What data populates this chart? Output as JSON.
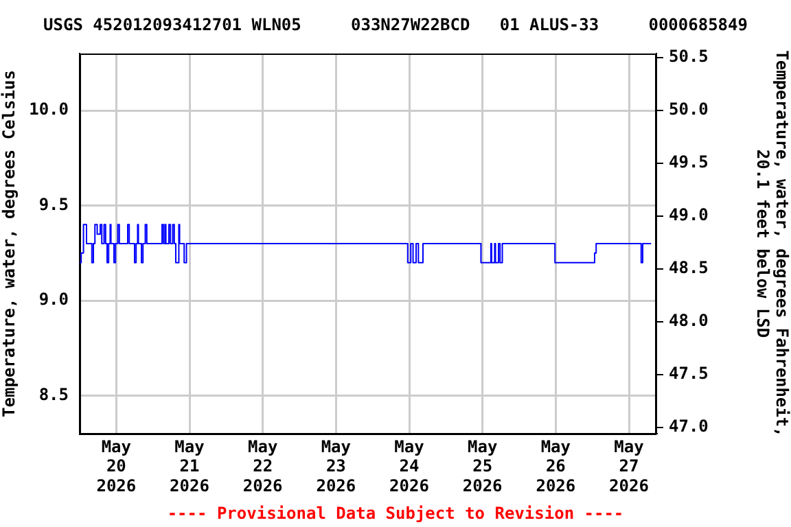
{
  "chart_data": {
    "type": "step",
    "title": "USGS 452012093412701 WLN05     033N27W22BCD   01 ALUS-33     0000685849",
    "ylabel": "Temperature, water, degrees Celsius",
    "y2label": "Temperature, water, degrees Fahrenheit,\n20.1 feet below LSD",
    "annotations": [
      "---- Provisional Data Subject to Revision ----"
    ],
    "x": [
      "2026-05-19T12:00",
      "2026-05-19T12:30",
      "2026-05-19T13:15",
      "2026-05-19T14:15",
      "2026-05-19T15:30",
      "2026-05-19T16:00",
      "2026-05-19T16:30",
      "2026-05-19T17:00",
      "2026-05-19T17:45",
      "2026-05-19T18:45",
      "2026-05-19T19:15",
      "2026-05-19T20:00",
      "2026-05-19T20:30",
      "2026-05-19T21:00",
      "2026-05-19T21:30",
      "2026-05-19T22:00",
      "2026-05-19T22:15",
      "2026-05-19T23:15",
      "2026-05-19T23:45",
      "2026-05-20T00:30",
      "2026-05-20T01:00",
      "2026-05-20T03:45",
      "2026-05-20T04:15",
      "2026-05-20T06:00",
      "2026-05-20T06:30",
      "2026-05-20T07:00",
      "2026-05-20T07:15",
      "2026-05-20T08:15",
      "2026-05-20T08:45",
      "2026-05-20T09:30",
      "2026-05-20T10:00",
      "2026-05-20T15:00",
      "2026-05-20T15:30",
      "2026-05-20T16:00",
      "2026-05-20T16:15",
      "2026-05-20T17:15",
      "2026-05-20T17:45",
      "2026-05-20T18:30",
      "2026-05-20T19:00",
      "2026-05-20T19:30",
      "2026-05-20T20:30",
      "2026-05-20T20:45",
      "2026-05-20T22:15",
      "2026-05-20T23:00",
      "2026-05-23T23:30",
      "2026-05-24T00:30",
      "2026-05-24T01:15",
      "2026-05-24T02:15",
      "2026-05-24T03:00",
      "2026-05-24T04:30",
      "2026-05-24T05:00",
      "2026-05-24T23:30",
      "2026-05-25T02:45",
      "2026-05-25T03:00",
      "2026-05-25T04:00",
      "2026-05-25T04:15",
      "2026-05-25T05:15",
      "2026-05-25T05:45",
      "2026-05-25T06:30",
      "2026-05-25T23:45",
      "2026-05-26T12:45",
      "2026-05-26T13:15",
      "2026-05-27T04:00",
      "2026-05-27T04:30",
      "2026-05-27T07:15"
    ],
    "series": [
      {
        "color": "#0000ff",
        "values": [
          9.2,
          9.25,
          9.4,
          9.3,
          9.3,
          9.2,
          9.3,
          9.4,
          9.35,
          9.4,
          9.3,
          9.4,
          9.3,
          9.2,
          9.3,
          9.4,
          9.3,
          9.2,
          9.3,
          9.4,
          9.3,
          9.4,
          9.3,
          9.2,
          9.3,
          9.4,
          9.3,
          9.2,
          9.3,
          9.4,
          9.3,
          9.4,
          9.3,
          9.4,
          9.3,
          9.4,
          9.3,
          9.4,
          9.3,
          9.2,
          9.4,
          9.3,
          9.2,
          9.3,
          9.2,
          9.3,
          9.2,
          9.3,
          9.2,
          9.3,
          9.3,
          9.2,
          9.3,
          9.2,
          9.3,
          9.2,
          9.3,
          9.2,
          9.3,
          9.2,
          9.25,
          9.3,
          9.2,
          9.3,
          9.3
        ]
      }
    ],
    "xlim": [
      "2026-05-19T12:00",
      "2026-05-27T09:00"
    ],
    "xticks": [
      {
        "value": "2026-05-20",
        "label": "May\n20\n2026"
      },
      {
        "value": "2026-05-21",
        "label": "May\n21\n2026"
      },
      {
        "value": "2026-05-22",
        "label": "May\n22\n2026"
      },
      {
        "value": "2026-05-23",
        "label": "May\n23\n2026"
      },
      {
        "value": "2026-05-24",
        "label": "May\n24\n2026"
      },
      {
        "value": "2026-05-25",
        "label": "May\n25\n2026"
      },
      {
        "value": "2026-05-26",
        "label": "May\n26\n2026"
      },
      {
        "value": "2026-05-27",
        "label": "May\n27\n2026"
      }
    ],
    "ylim": [
      8.3,
      10.3
    ],
    "yticks": [
      {
        "value": 8.5,
        "label": "8.5"
      },
      {
        "value": 9,
        "label": "9.0"
      },
      {
        "value": 9.5,
        "label": "9.5"
      },
      {
        "value": 10,
        "label": "10.0"
      }
    ],
    "y2lim": [
      46.94,
      50.54
    ],
    "y2ticks": [
      {
        "value": 47,
        "label": "47.0"
      },
      {
        "value": 47.5,
        "label": "47.5"
      },
      {
        "value": 48,
        "label": "48.0"
      },
      {
        "value": 48.5,
        "label": "48.5"
      },
      {
        "value": 49,
        "label": "49.0"
      },
      {
        "value": 49.5,
        "label": "49.5"
      },
      {
        "value": 50,
        "label": "50.0"
      },
      {
        "value": 50.5,
        "label": "50.5"
      }
    ],
    "grid": true,
    "legend": false,
    "marker": "none",
    "line_style": "solid"
  }
}
